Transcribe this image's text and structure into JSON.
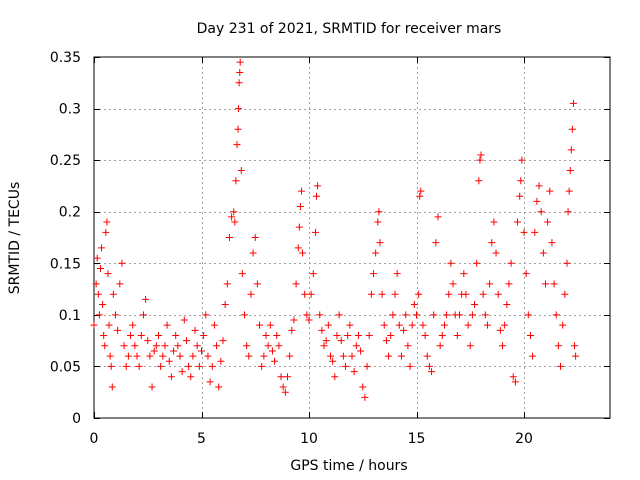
{
  "chart_data": {
    "type": "scatter",
    "title": "Day 231 of 2021, SRMTID for receiver mars",
    "xlabel": "GPS time / hours",
    "ylabel": "SRMTID / TECUs",
    "xlim": [
      0,
      24
    ],
    "ylim": [
      0,
      0.35
    ],
    "xticks": [
      0,
      5,
      10,
      15,
      20
    ],
    "xtick_labels": [
      "0",
      "5",
      "10",
      "15",
      "20"
    ],
    "yticks": [
      0,
      0.05,
      0.1,
      0.15,
      0.2,
      0.25,
      0.3,
      0.35
    ],
    "ytick_labels": [
      "0",
      "0.05",
      "0.1",
      "0.15",
      "0.2",
      "0.25",
      "0.3",
      "0.35"
    ],
    "grid": true,
    "marker": "plus",
    "color": "#ff0000",
    "series": [
      {
        "name": "SRMTID",
        "points": [
          [
            0.0,
            0.09
          ],
          [
            0.1,
            0.13
          ],
          [
            0.15,
            0.155
          ],
          [
            0.2,
            0.12
          ],
          [
            0.25,
            0.1
          ],
          [
            0.3,
            0.145
          ],
          [
            0.35,
            0.165
          ],
          [
            0.4,
            0.11
          ],
          [
            0.45,
            0.08
          ],
          [
            0.5,
            0.07
          ],
          [
            0.55,
            0.18
          ],
          [
            0.6,
            0.19
          ],
          [
            0.65,
            0.14
          ],
          [
            0.7,
            0.09
          ],
          [
            0.75,
            0.06
          ],
          [
            0.8,
            0.05
          ],
          [
            0.85,
            0.03
          ],
          [
            0.9,
            0.12
          ],
          [
            1.0,
            0.1
          ],
          [
            1.1,
            0.085
          ],
          [
            1.2,
            0.13
          ],
          [
            1.3,
            0.15
          ],
          [
            1.4,
            0.07
          ],
          [
            1.5,
            0.05
          ],
          [
            1.6,
            0.06
          ],
          [
            1.7,
            0.08
          ],
          [
            1.8,
            0.09
          ],
          [
            1.9,
            0.07
          ],
          [
            2.0,
            0.06
          ],
          [
            2.1,
            0.05
          ],
          [
            2.2,
            0.08
          ],
          [
            2.3,
            0.1
          ],
          [
            2.4,
            0.115
          ],
          [
            2.5,
            0.075
          ],
          [
            2.6,
            0.06
          ],
          [
            2.7,
            0.03
          ],
          [
            2.8,
            0.065
          ],
          [
            2.9,
            0.07
          ],
          [
            3.0,
            0.08
          ],
          [
            3.1,
            0.05
          ],
          [
            3.2,
            0.06
          ],
          [
            3.3,
            0.07
          ],
          [
            3.4,
            0.09
          ],
          [
            3.5,
            0.055
          ],
          [
            3.6,
            0.04
          ],
          [
            3.7,
            0.065
          ],
          [
            3.8,
            0.08
          ],
          [
            3.9,
            0.07
          ],
          [
            4.0,
            0.06
          ],
          [
            4.1,
            0.045
          ],
          [
            4.2,
            0.095
          ],
          [
            4.3,
            0.075
          ],
          [
            4.4,
            0.05
          ],
          [
            4.5,
            0.04
          ],
          [
            4.6,
            0.06
          ],
          [
            4.7,
            0.085
          ],
          [
            4.8,
            0.07
          ],
          [
            4.9,
            0.05
          ],
          [
            5.0,
            0.065
          ],
          [
            5.1,
            0.08
          ],
          [
            5.2,
            0.1
          ],
          [
            5.3,
            0.06
          ],
          [
            5.4,
            0.035
          ],
          [
            5.5,
            0.05
          ],
          [
            5.6,
            0.09
          ],
          [
            5.7,
            0.07
          ],
          [
            5.8,
            0.03
          ],
          [
            5.9,
            0.055
          ],
          [
            6.0,
            0.075
          ],
          [
            6.1,
            0.11
          ],
          [
            6.2,
            0.13
          ],
          [
            6.3,
            0.175
          ],
          [
            6.4,
            0.195
          ],
          [
            6.5,
            0.2
          ],
          [
            6.55,
            0.19
          ],
          [
            6.6,
            0.23
          ],
          [
            6.65,
            0.265
          ],
          [
            6.7,
            0.28
          ],
          [
            6.72,
            0.3
          ],
          [
            6.75,
            0.325
          ],
          [
            6.78,
            0.335
          ],
          [
            6.8,
            0.345
          ],
          [
            6.85,
            0.24
          ],
          [
            6.9,
            0.14
          ],
          [
            7.0,
            0.1
          ],
          [
            7.1,
            0.07
          ],
          [
            7.2,
            0.06
          ],
          [
            7.3,
            0.12
          ],
          [
            7.4,
            0.16
          ],
          [
            7.5,
            0.175
          ],
          [
            7.6,
            0.13
          ],
          [
            7.7,
            0.09
          ],
          [
            7.8,
            0.05
          ],
          [
            7.9,
            0.06
          ],
          [
            8.0,
            0.08
          ],
          [
            8.1,
            0.07
          ],
          [
            8.2,
            0.09
          ],
          [
            8.3,
            0.065
          ],
          [
            8.4,
            0.055
          ],
          [
            8.5,
            0.08
          ],
          [
            8.6,
            0.07
          ],
          [
            8.7,
            0.04
          ],
          [
            8.8,
            0.03
          ],
          [
            8.9,
            0.025
          ],
          [
            9.0,
            0.04
          ],
          [
            9.1,
            0.06
          ],
          [
            9.2,
            0.085
          ],
          [
            9.3,
            0.095
          ],
          [
            9.4,
            0.13
          ],
          [
            9.5,
            0.165
          ],
          [
            9.55,
            0.185
          ],
          [
            9.6,
            0.205
          ],
          [
            9.65,
            0.22
          ],
          [
            9.7,
            0.16
          ],
          [
            9.8,
            0.12
          ],
          [
            9.9,
            0.1
          ],
          [
            10.0,
            0.095
          ],
          [
            10.1,
            0.12
          ],
          [
            10.2,
            0.14
          ],
          [
            10.3,
            0.18
          ],
          [
            10.35,
            0.215
          ],
          [
            10.4,
            0.225
          ],
          [
            10.5,
            0.1
          ],
          [
            10.6,
            0.085
          ],
          [
            10.7,
            0.07
          ],
          [
            10.8,
            0.075
          ],
          [
            10.9,
            0.09
          ],
          [
            11.0,
            0.06
          ],
          [
            11.1,
            0.055
          ],
          [
            11.2,
            0.04
          ],
          [
            11.3,
            0.08
          ],
          [
            11.4,
            0.1
          ],
          [
            11.5,
            0.075
          ],
          [
            11.6,
            0.06
          ],
          [
            11.7,
            0.05
          ],
          [
            11.8,
            0.08
          ],
          [
            11.9,
            0.09
          ],
          [
            12.0,
            0.06
          ],
          [
            12.1,
            0.045
          ],
          [
            12.2,
            0.07
          ],
          [
            12.3,
            0.08
          ],
          [
            12.4,
            0.065
          ],
          [
            12.5,
            0.03
          ],
          [
            12.6,
            0.02
          ],
          [
            12.7,
            0.05
          ],
          [
            12.8,
            0.08
          ],
          [
            12.9,
            0.12
          ],
          [
            13.0,
            0.14
          ],
          [
            13.1,
            0.16
          ],
          [
            13.2,
            0.19
          ],
          [
            13.25,
            0.2
          ],
          [
            13.3,
            0.17
          ],
          [
            13.4,
            0.12
          ],
          [
            13.5,
            0.09
          ],
          [
            13.6,
            0.075
          ],
          [
            13.7,
            0.06
          ],
          [
            13.8,
            0.08
          ],
          [
            13.9,
            0.1
          ],
          [
            14.0,
            0.12
          ],
          [
            14.1,
            0.14
          ],
          [
            14.2,
            0.09
          ],
          [
            14.3,
            0.06
          ],
          [
            14.4,
            0.085
          ],
          [
            14.5,
            0.1
          ],
          [
            14.6,
            0.07
          ],
          [
            14.7,
            0.05
          ],
          [
            14.8,
            0.09
          ],
          [
            14.9,
            0.11
          ],
          [
            15.0,
            0.1
          ],
          [
            15.1,
            0.12
          ],
          [
            15.15,
            0.215
          ],
          [
            15.2,
            0.22
          ],
          [
            15.3,
            0.09
          ],
          [
            15.4,
            0.08
          ],
          [
            15.5,
            0.06
          ],
          [
            15.6,
            0.05
          ],
          [
            15.7,
            0.045
          ],
          [
            15.8,
            0.1
          ],
          [
            15.9,
            0.17
          ],
          [
            16.0,
            0.195
          ],
          [
            16.1,
            0.07
          ],
          [
            16.2,
            0.08
          ],
          [
            16.3,
            0.09
          ],
          [
            16.4,
            0.1
          ],
          [
            16.5,
            0.12
          ],
          [
            16.6,
            0.15
          ],
          [
            16.7,
            0.13
          ],
          [
            16.8,
            0.1
          ],
          [
            16.9,
            0.08
          ],
          [
            17.0,
            0.1
          ],
          [
            17.1,
            0.12
          ],
          [
            17.2,
            0.14
          ],
          [
            17.3,
            0.12
          ],
          [
            17.4,
            0.09
          ],
          [
            17.5,
            0.07
          ],
          [
            17.6,
            0.1
          ],
          [
            17.7,
            0.11
          ],
          [
            17.8,
            0.15
          ],
          [
            17.9,
            0.23
          ],
          [
            17.95,
            0.25
          ],
          [
            18.0,
            0.255
          ],
          [
            18.1,
            0.12
          ],
          [
            18.2,
            0.1
          ],
          [
            18.3,
            0.09
          ],
          [
            18.4,
            0.13
          ],
          [
            18.5,
            0.17
          ],
          [
            18.6,
            0.19
          ],
          [
            18.7,
            0.16
          ],
          [
            18.8,
            0.12
          ],
          [
            18.9,
            0.085
          ],
          [
            19.0,
            0.07
          ],
          [
            19.1,
            0.09
          ],
          [
            19.2,
            0.11
          ],
          [
            19.3,
            0.13
          ],
          [
            19.4,
            0.15
          ],
          [
            19.5,
            0.04
          ],
          [
            19.6,
            0.035
          ],
          [
            19.7,
            0.19
          ],
          [
            19.8,
            0.215
          ],
          [
            19.85,
            0.23
          ],
          [
            19.9,
            0.25
          ],
          [
            20.0,
            0.18
          ],
          [
            20.1,
            0.14
          ],
          [
            20.2,
            0.1
          ],
          [
            20.3,
            0.08
          ],
          [
            20.4,
            0.06
          ],
          [
            20.5,
            0.18
          ],
          [
            20.6,
            0.21
          ],
          [
            20.7,
            0.225
          ],
          [
            20.8,
            0.2
          ],
          [
            20.9,
            0.16
          ],
          [
            21.0,
            0.13
          ],
          [
            21.1,
            0.19
          ],
          [
            21.2,
            0.22
          ],
          [
            21.3,
            0.17
          ],
          [
            21.4,
            0.13
          ],
          [
            21.5,
            0.1
          ],
          [
            21.6,
            0.07
          ],
          [
            21.7,
            0.05
          ],
          [
            21.8,
            0.09
          ],
          [
            21.9,
            0.12
          ],
          [
            22.0,
            0.15
          ],
          [
            22.05,
            0.2
          ],
          [
            22.1,
            0.22
          ],
          [
            22.15,
            0.24
          ],
          [
            22.2,
            0.26
          ],
          [
            22.25,
            0.28
          ],
          [
            22.3,
            0.305
          ],
          [
            22.35,
            0.07
          ],
          [
            22.4,
            0.06
          ]
        ]
      }
    ]
  }
}
